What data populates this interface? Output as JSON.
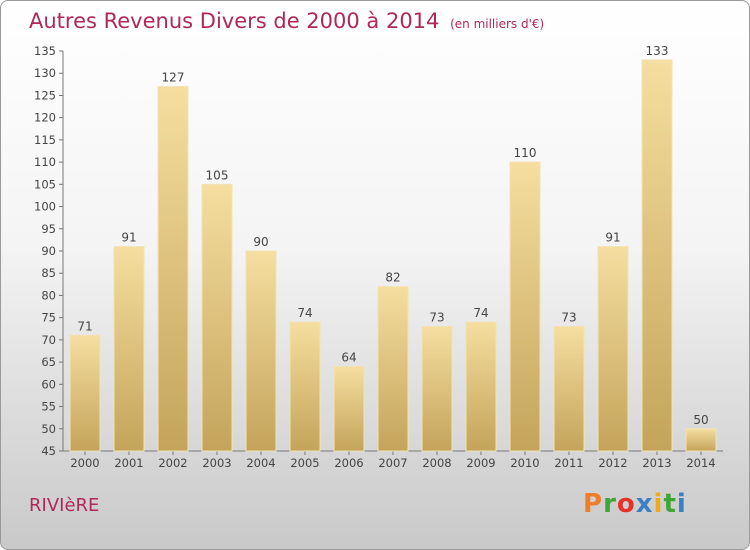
{
  "header": {
    "title": "Autres Revenus Divers de 2000 à 2014",
    "unit": "(en milliers d'€)"
  },
  "footer": {
    "commune": "RIVIèRE",
    "logo": "Proxiti",
    "logo_colors": [
      "#f07d2b",
      "#3fa535",
      "#e6332a",
      "#3b7fc4",
      "#f0a81c",
      "#3fa535",
      "#3b7fc4"
    ]
  },
  "colors": {
    "bar_top": "#f5dea0",
    "bar_bottom": "#c4a45a",
    "title": "#b0285b"
  },
  "chart_data": {
    "type": "bar",
    "title": "Autres Revenus Divers de 2000 à 2014",
    "categories": [
      "2000",
      "2001",
      "2002",
      "2003",
      "2004",
      "2005",
      "2006",
      "2007",
      "2008",
      "2009",
      "2010",
      "2011",
      "2012",
      "2013",
      "2014"
    ],
    "values": [
      71,
      91,
      127,
      105,
      90,
      74,
      64,
      82,
      73,
      74,
      110,
      73,
      91,
      133,
      50
    ],
    "ylim": [
      45,
      135
    ],
    "yticks": [
      45,
      50,
      55,
      60,
      65,
      70,
      75,
      80,
      85,
      90,
      95,
      100,
      105,
      110,
      115,
      120,
      125,
      130,
      135
    ],
    "xlabel": "",
    "ylabel": "",
    "grid": false,
    "data_labels": true
  }
}
